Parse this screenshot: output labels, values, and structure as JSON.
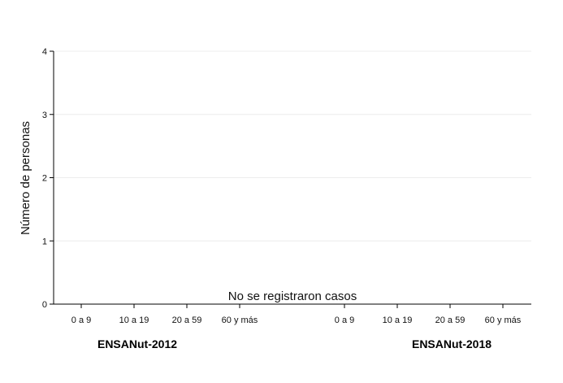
{
  "chart_data": {
    "type": "bar",
    "ylabel": "Número de personas",
    "ylim": [
      0,
      4
    ],
    "yticks": [
      0,
      1,
      2,
      3,
      4
    ],
    "grid": true,
    "annotation": "No se registraron casos",
    "groups": [
      {
        "label": "ENSANut-2012",
        "categories": [
          "0 a 9",
          "10 a 19",
          "20 a 59",
          "60 y más"
        ],
        "values": [
          0,
          0,
          0,
          0
        ]
      },
      {
        "label": "ENSANut-2018",
        "categories": [
          "0 a 9",
          "10 a 19",
          "20 a 59",
          "60 y más"
        ],
        "values": [
          0,
          0,
          0,
          0
        ]
      }
    ]
  }
}
